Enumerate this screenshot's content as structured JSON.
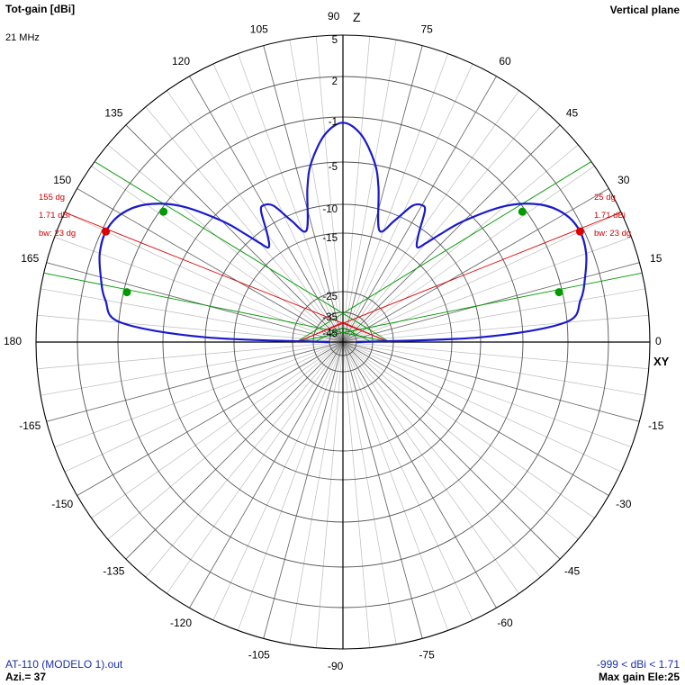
{
  "header": {
    "title": "Tot-gain [dBi]",
    "frequency": "21 MHz",
    "plane": "Vertical plane"
  },
  "footer": {
    "file": "AT-110 (MODELO 1).out",
    "azimuth": "Azi.= 37",
    "range": "-999 < dBi < 1.71",
    "max_gain": "Max gain Ele:25"
  },
  "colors": {
    "pattern": "#1a1acc",
    "beam_line": "#dd0000",
    "half_power_line": "#009900",
    "grid": "#808080",
    "annotation": "#cc0000"
  },
  "chart_data": {
    "type": "polar",
    "angle_unit": "degrees",
    "radial_unit": "dBi",
    "angle_tick_labels": [
      "0",
      "15",
      "30",
      "45",
      "60",
      "75",
      "90",
      "105",
      "120",
      "135",
      "150",
      "165",
      "180",
      "-165",
      "-150",
      "-135",
      "-120",
      "-105",
      "-90",
      "-75",
      "-60",
      "-45",
      "-30",
      "-15"
    ],
    "radial_tick_labels": [
      "5",
      "2",
      "-1",
      "-5",
      "-10",
      "-15",
      "-25",
      "-35",
      "-45"
    ],
    "axis_labels": {
      "vertical": "Z",
      "horizontal": "XY"
    },
    "pattern": {
      "elevation": [
        0,
        2,
        5,
        10,
        15,
        20,
        25,
        30,
        35,
        40,
        45,
        48,
        50,
        52,
        55,
        58,
        60,
        63,
        67,
        72,
        77,
        80,
        85,
        90
      ],
      "gain_dbi": [
        -60,
        -10,
        -1.2,
        0.2,
        0.9,
        1.5,
        1.71,
        1.3,
        0.1,
        -2.2,
        -6,
        -9.2,
        -11.5,
        -13,
        -11,
        -8,
        -7.6,
        -8.2,
        -11,
        -13.5,
        -7.6,
        -4.8,
        -2.5,
        -1.5
      ]
    },
    "beams": [
      {
        "angle": 25,
        "gain_dbi": 1.71,
        "labels": [
          "25 dg",
          "1.71 dBi",
          "bw: 23 dg"
        ]
      },
      {
        "angle": 155,
        "gain_dbi": 1.71,
        "labels": [
          "155 dg",
          "1.71 dBi",
          "bw: 23 dg"
        ]
      }
    ],
    "half_power_points": [
      {
        "angle": 13,
        "gain_dbi": -1.29
      },
      {
        "angle": 36,
        "gain_dbi": -1.29
      },
      {
        "angle": 144,
        "gain_dbi": -1.29
      },
      {
        "angle": 167,
        "gain_dbi": -1.29
      }
    ]
  }
}
